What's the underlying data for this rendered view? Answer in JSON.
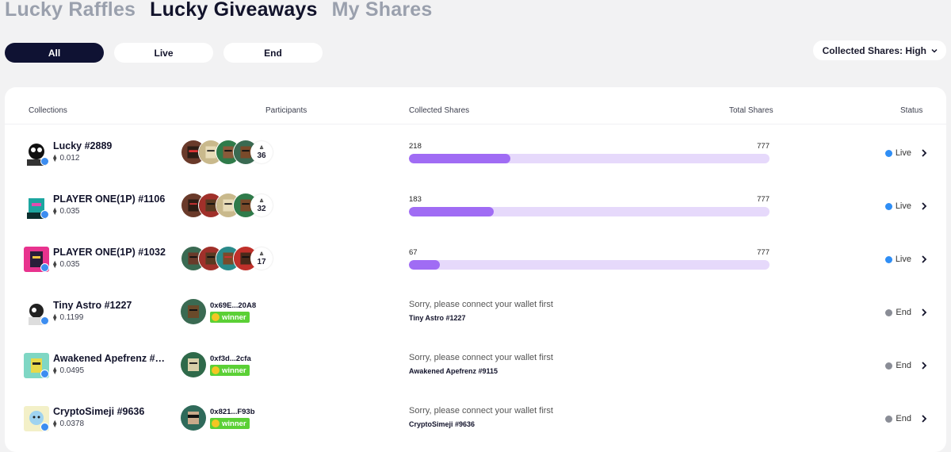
{
  "tabs": [
    {
      "label": "Lucky Raffles",
      "active": false
    },
    {
      "label": "Lucky Giveaways",
      "active": true
    },
    {
      "label": "My Shares",
      "active": false
    }
  ],
  "filters": [
    {
      "label": "All",
      "active": true
    },
    {
      "label": "Live",
      "active": false
    },
    {
      "label": "End",
      "active": false
    }
  ],
  "sort": {
    "label": "Collected Shares: High",
    "icon": "chevron-down-icon"
  },
  "table": {
    "headers": {
      "collections": "Collections",
      "participants": "Participants",
      "collected": "Collected Shares",
      "total": "Total Shares",
      "status": "Status"
    },
    "rows": [
      {
        "name": "Lucky #2889",
        "price": "0.012",
        "kind": "live",
        "more": "36",
        "collected": "218",
        "total": "777",
        "progress": 0.2806,
        "status": "Live"
      },
      {
        "name": "PLAYER ONE(1P) #1106",
        "price": "0.035",
        "kind": "live",
        "more": "32",
        "collected": "183",
        "total": "777",
        "progress": 0.2355,
        "status": "Live"
      },
      {
        "name": "PLAYER ONE(1P) #1032",
        "price": "0.035",
        "kind": "live",
        "more": "17",
        "collected": "67",
        "total": "777",
        "progress": 0.0862,
        "status": "Live"
      },
      {
        "name": "Tiny Astro #1227",
        "price": "0.1199",
        "kind": "end",
        "winner_addr": "0x69E...20A8",
        "winner_label": "winner",
        "message": "Sorry, please connect your wallet first",
        "sub": "Tiny Astro #1227",
        "status": "End"
      },
      {
        "name": "Awakened Apefrenz #9115",
        "price": "0.0495",
        "kind": "end",
        "winner_addr": "0xf3d...2cfa",
        "winner_label": "winner",
        "message": "Sorry, please connect your wallet first",
        "sub": "Awakened Apefrenz #9115",
        "status": "End"
      },
      {
        "name": "CryptoSimeji #9636",
        "price": "0.0378",
        "kind": "end",
        "winner_addr": "0x821...F93b",
        "winner_label": "winner",
        "message": "Sorry, please connect your wallet first",
        "sub": "CryptoSimeji #9636",
        "status": "End"
      }
    ]
  },
  "colors": {
    "live": "#2f8ef5",
    "end": "#8a8d96",
    "bar_fill": "#a06cf4",
    "bar_track": "#e6d9fb",
    "winner": "#5bd036"
  }
}
